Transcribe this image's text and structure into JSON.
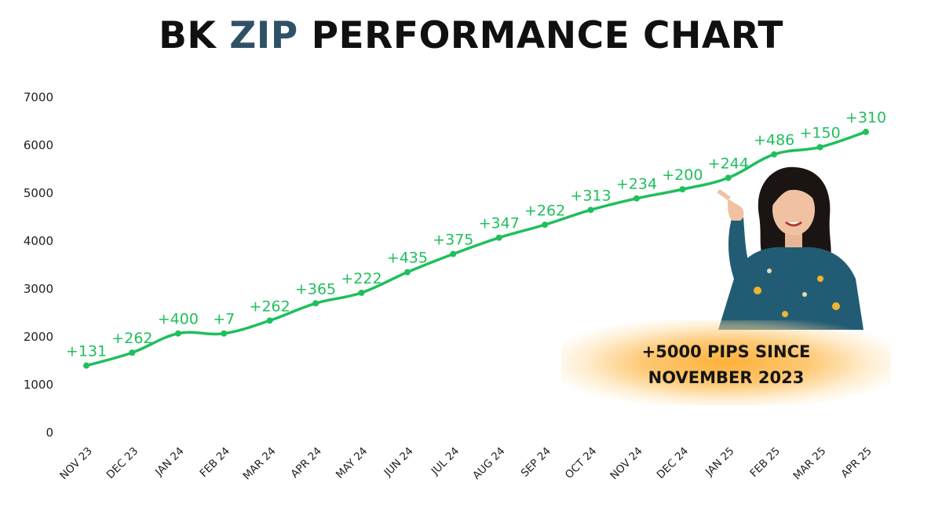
{
  "title": {
    "part1": "BK ",
    "accent": "ZIP",
    "part2": " PERFORMANCE CHART"
  },
  "callout": {
    "line1": "+5000 PIPS SINCE",
    "line2": "NOVEMBER 2023"
  },
  "colors": {
    "line": "#1fbf5c",
    "accent": "#2f5166",
    "callout_glow": "#fdb139"
  },
  "chart_data": {
    "type": "line",
    "categories": [
      "NOV 23",
      "DEC 23",
      "JAN 24",
      "FEB 24",
      "MAR 24",
      "APR 24",
      "MAY 24",
      "JUN 24",
      "JUL 24",
      "AUG 24",
      "SEP 24",
      "OCT 24",
      "NOV 24",
      "DEC 24",
      "JAN 25",
      "FEB 25",
      "MAR 25",
      "APR 25"
    ],
    "values": [
      1400,
      1670,
      2070,
      2070,
      2340,
      2700,
      2920,
      3350,
      3730,
      4070,
      4340,
      4650,
      4890,
      5080,
      5320,
      5810,
      5960,
      6280
    ],
    "labels": [
      "+131",
      "+262",
      "+400",
      "+7",
      "+262",
      "+365",
      "+222",
      "+435",
      "+375",
      "+347",
      "+262",
      "+313",
      "+234",
      "+200",
      "+244",
      "+486",
      "+150",
      "+310"
    ],
    "yticks": [
      0,
      1000,
      2000,
      3000,
      4000,
      5000,
      6000,
      7000
    ],
    "ylim": [
      0,
      7000
    ],
    "grid": false,
    "legend": "none"
  }
}
